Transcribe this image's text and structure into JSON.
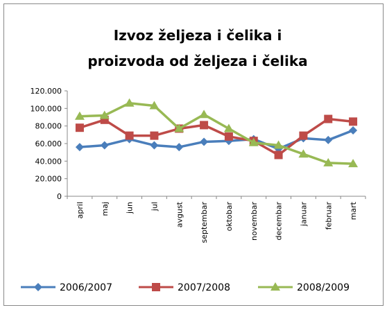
{
  "chart_data": {
    "type": "line",
    "title": "Izvoz željeza i čelika i proizvoda od željeza i čelika",
    "categories": [
      "april",
      "maj",
      "jun",
      "jul",
      "avgust",
      "septembar",
      "oktobar",
      "novembar",
      "decembar",
      "januar",
      "februar",
      "mart"
    ],
    "series": [
      {
        "name": "2006/2007",
        "color": "#4a7ebb",
        "marker": "diamond",
        "values": [
          56000,
          58000,
          65000,
          58000,
          56000,
          62000,
          63000,
          65000,
          54000,
          66000,
          64000,
          75000
        ]
      },
      {
        "name": "2007/2008",
        "color": "#be4b48",
        "marker": "square",
        "values": [
          78000,
          87000,
          69000,
          69000,
          77000,
          81000,
          68000,
          63000,
          47000,
          69000,
          88000,
          85000
        ]
      },
      {
        "name": "2008/2009",
        "color": "#98b954",
        "marker": "triangle",
        "values": [
          91000,
          92000,
          106000,
          103000,
          77000,
          93000,
          77000,
          61000,
          58000,
          48000,
          38000,
          37000
        ]
      }
    ],
    "ylim": [
      0,
      120000
    ],
    "yticks": [
      0,
      {
        "value": 20000,
        "label": "20.000"
      },
      {
        "value": 40000,
        "label": "40.000"
      },
      {
        "value": 60000,
        "label": "60.000"
      },
      {
        "value": 80000,
        "label": "80.000"
      },
      {
        "value": 100000,
        "label": "100.000"
      },
      {
        "value": 120000,
        "label": "120.000"
      }
    ],
    "grid": false,
    "legend": "bottom"
  }
}
